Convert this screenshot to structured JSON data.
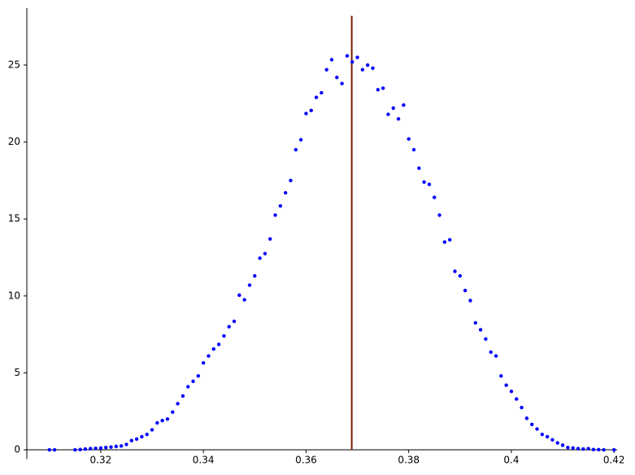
{
  "chart_data": {
    "type": "scatter",
    "x": [
      0.31,
      0.311,
      0.315,
      0.316,
      0.317,
      0.318,
      0.319,
      0.32,
      0.321,
      0.322,
      0.323,
      0.324,
      0.325,
      0.326,
      0.327,
      0.328,
      0.329,
      0.33,
      0.331,
      0.332,
      0.333,
      0.334,
      0.335,
      0.336,
      0.337,
      0.338,
      0.339,
      0.34,
      0.341,
      0.342,
      0.343,
      0.344,
      0.345,
      0.346,
      0.347,
      0.348,
      0.349,
      0.35,
      0.351,
      0.352,
      0.353,
      0.354,
      0.355,
      0.356,
      0.357,
      0.358,
      0.359,
      0.36,
      0.361,
      0.362,
      0.363,
      0.364,
      0.365,
      0.366,
      0.367,
      0.368,
      0.369,
      0.37,
      0.371,
      0.372,
      0.373,
      0.374,
      0.375,
      0.376,
      0.377,
      0.378,
      0.379,
      0.38,
      0.381,
      0.382,
      0.383,
      0.384,
      0.385,
      0.386,
      0.387,
      0.388,
      0.389,
      0.39,
      0.391,
      0.392,
      0.393,
      0.394,
      0.395,
      0.396,
      0.397,
      0.398,
      0.399,
      0.4,
      0.401,
      0.402,
      0.403,
      0.404,
      0.405,
      0.406,
      0.407,
      0.408,
      0.409,
      0.41,
      0.411,
      0.412,
      0.413,
      0.414,
      0.415,
      0.416,
      0.417,
      0.418,
      0.42
    ],
    "values": [
      0,
      0,
      0,
      0.02,
      0.05,
      0.08,
      0.1,
      0.12,
      0.15,
      0.18,
      0.22,
      0.25,
      0.35,
      0.6,
      0.7,
      0.85,
      1.0,
      1.3,
      1.75,
      1.9,
      2.0,
      2.45,
      3.0,
      3.5,
      4.1,
      4.45,
      4.8,
      5.65,
      6.1,
      6.55,
      6.85,
      7.4,
      8.0,
      8.35,
      10.05,
      9.75,
      10.7,
      11.3,
      12.45,
      12.75,
      13.7,
      15.25,
      15.85,
      16.7,
      17.5,
      19.5,
      20.15,
      21.85,
      22.05,
      22.9,
      23.2,
      24.7,
      25.35,
      24.2,
      23.8,
      25.6,
      25.2,
      25.5,
      24.7,
      25.0,
      24.8,
      23.4,
      23.5,
      21.8,
      22.2,
      21.5,
      22.4,
      20.2,
      19.5,
      18.3,
      17.4,
      17.25,
      16.4,
      15.25,
      13.5,
      13.65,
      11.6,
      11.3,
      10.35,
      9.7,
      8.25,
      7.8,
      7.2,
      6.35,
      6.1,
      4.8,
      4.2,
      3.8,
      3.3,
      2.75,
      2.05,
      1.65,
      1.35,
      1.0,
      0.85,
      0.65,
      0.45,
      0.3,
      0.15,
      0.12,
      0.08,
      0.05,
      0.08,
      0.02,
      0.01,
      0,
      0
    ],
    "color": "#0000ff",
    "reference_line": {
      "x": 0.3689,
      "y_range": [
        0,
        28.2
      ],
      "color": "#7a1c00"
    },
    "xlim": [
      0.3056,
      0.4206
    ],
    "xticks": [
      0.32,
      0.34,
      0.36,
      0.38,
      0.4,
      0.42
    ],
    "ylim": [
      -0.6,
      28.7
    ],
    "yticks": [
      0,
      5,
      10,
      15,
      20,
      25
    ]
  }
}
